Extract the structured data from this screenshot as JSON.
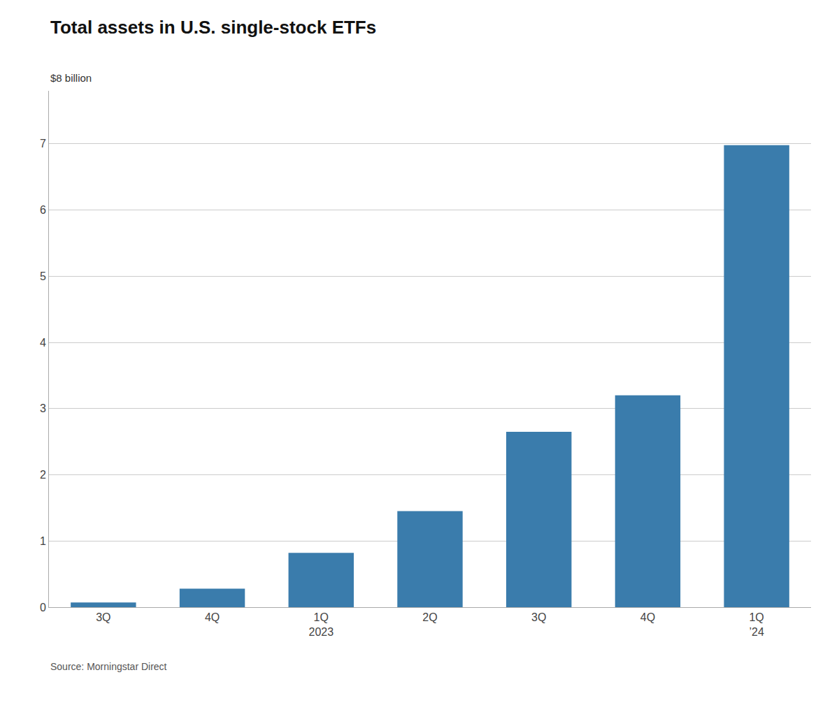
{
  "chart_data": {
    "type": "bar",
    "title": "Total assets in U.S. single-stock ETFs",
    "ylabel": "$8 billion",
    "source": "Source: Morningstar Direct",
    "categories": [
      "3Q",
      "4Q",
      "1Q\n2023",
      "2Q",
      "3Q",
      "4Q",
      "1Q\n’24"
    ],
    "values": [
      0.07,
      0.28,
      0.82,
      1.45,
      2.65,
      3.2,
      6.98
    ],
    "color": "#3a7cac",
    "ylim": [
      0,
      7.8
    ],
    "yticks": [
      0,
      1,
      2,
      3,
      4,
      5,
      6,
      7
    ],
    "grid": true
  }
}
